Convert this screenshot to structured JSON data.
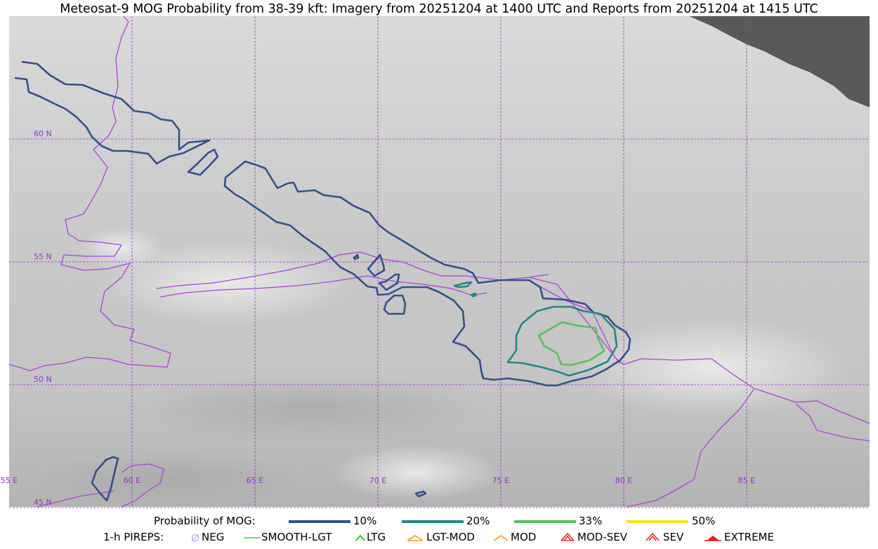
{
  "title": "Meteosat-9 MOG Probability from 38-39 kft: Imagery from 20251204 at 1400 UTC and Reports from 20251204 at 1415 UTC",
  "map": {
    "lat_labels": [
      "60 N",
      "55 N",
      "50 N",
      "45 N"
    ],
    "lon_labels": [
      "55 E",
      "60 E",
      "65 E",
      "70 E",
      "75 E",
      "80 E",
      "85 E"
    ],
    "gridline_color": "#9b30d0",
    "border_color": "#b040e0",
    "no_data_color": "#595959"
  },
  "legend": {
    "probability_title": "Probability of MOG:",
    "probability_levels": [
      {
        "label": "10%",
        "color": "#34508a"
      },
      {
        "label": "20%",
        "color": "#1f8a86"
      },
      {
        "label": "33%",
        "color": "#52c45a"
      },
      {
        "label": "50%",
        "color": "#f2e41a"
      }
    ],
    "pireps_title": "1-h PIREPS:",
    "pireps": [
      {
        "label": "NEG",
        "icon": "neg-circle-icon",
        "color": "#b8b8ff"
      },
      {
        "label": "SMOOTH-LGT",
        "icon": "smooth-lgt-line-icon",
        "color": "#33dd33"
      },
      {
        "label": "LTG",
        "icon": "ltg-caret-icon",
        "color": "#22cc22"
      },
      {
        "label": "LGT-MOD",
        "icon": "lgt-mod-caret-icon",
        "color": "#f5a623"
      },
      {
        "label": "MOD",
        "icon": "mod-caret-icon",
        "color": "#f5a623"
      },
      {
        "label": "MOD-SEV",
        "icon": "mod-sev-caret-icon",
        "color": "#e02020"
      },
      {
        "label": "SEV",
        "icon": "sev-caret-icon",
        "color": "#e02020"
      },
      {
        "label": "EXTREME",
        "icon": "extreme-triangle-icon",
        "color": "#e02020"
      }
    ]
  }
}
